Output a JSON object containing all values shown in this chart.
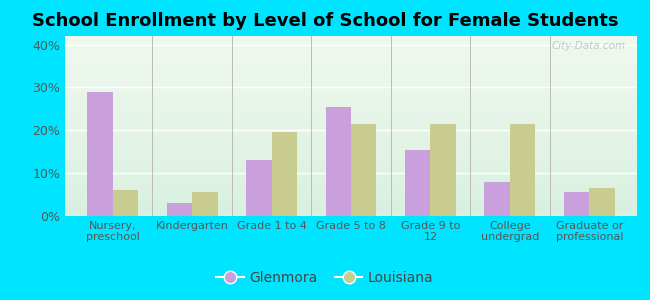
{
  "title": "School Enrollment by Level of School for Female Students",
  "categories": [
    "Nursery,\npreschool",
    "Kindergarten",
    "Grade 1 to 4",
    "Grade 5 to 8",
    "Grade 9 to\n12",
    "College\nundergrad",
    "Graduate or\nprofessional"
  ],
  "glenmora": [
    29.0,
    3.0,
    13.0,
    25.5,
    15.5,
    8.0,
    5.5
  ],
  "louisiana": [
    6.0,
    5.5,
    19.5,
    21.5,
    21.5,
    21.5,
    6.5
  ],
  "glenmora_color": "#c9a0dc",
  "louisiana_color": "#c8cc8e",
  "background_outer": "#00e5ff",
  "ylim": [
    0,
    42
  ],
  "yticks": [
    0,
    10,
    20,
    30,
    40
  ],
  "ytick_labels": [
    "0%",
    "10%",
    "20%",
    "30%",
    "40%"
  ],
  "bar_width": 0.32,
  "legend_labels": [
    "Glenmora",
    "Louisiana"
  ],
  "title_fontsize": 13,
  "watermark": "City-Data.com"
}
